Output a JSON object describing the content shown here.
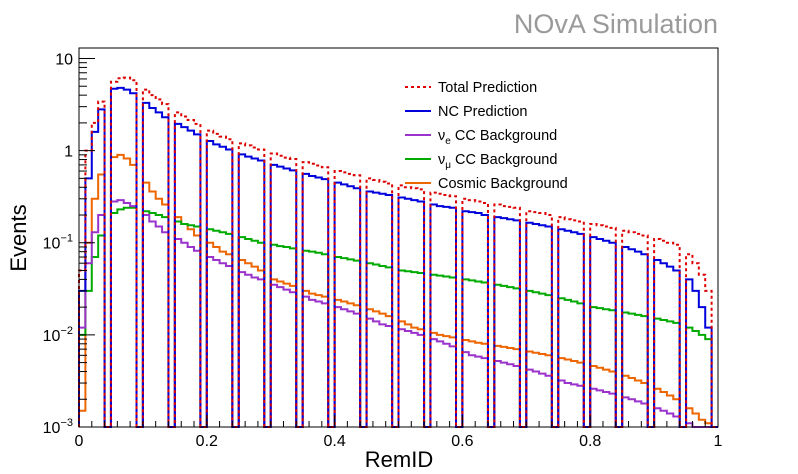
{
  "watermark": "NOvA Simulation",
  "chart_data": {
    "type": "line",
    "style": "step-histogram",
    "xlabel": "RemID",
    "ylabel": "Events",
    "xlim": [
      0,
      1
    ],
    "ylim": [
      0.001,
      13
    ],
    "yscale": "log",
    "grid": false,
    "legend_position": "top-right",
    "x_ticks": [
      "0",
      "0.2",
      "0.4",
      "0.6",
      "0.8",
      "1"
    ],
    "y_ticks": [
      {
        "base": "10",
        "exp": "−3",
        "value": 0.001
      },
      {
        "base": "10",
        "exp": "−2",
        "value": 0.01
      },
      {
        "base": "10",
        "exp": "−1",
        "value": 0.1
      },
      {
        "base": "1",
        "exp": "",
        "value": 1
      },
      {
        "base": "10",
        "exp": "",
        "value": 10
      }
    ],
    "bin_width": 0.01,
    "zero_bins": [
      4,
      9,
      14,
      19,
      24,
      29,
      34,
      39,
      44,
      49,
      54,
      59,
      64,
      69,
      74,
      79,
      84,
      89,
      94,
      99
    ],
    "series": [
      {
        "name": "Total Prediction",
        "color": "#dd0000",
        "dashed": true,
        "values": [
          0.05,
          1.0,
          2.0,
          3.4,
          4.7,
          5.6,
          6.1,
          6.2,
          5.8,
          5.2,
          4.6,
          4.0,
          3.6,
          3.2,
          2.9,
          2.6,
          2.35,
          2.15,
          1.95,
          1.8,
          1.65,
          1.52,
          1.42,
          1.33,
          1.26,
          1.2,
          1.14,
          1.08,
          1.03,
          0.98,
          0.93,
          0.88,
          0.84,
          0.81,
          0.78,
          0.75,
          0.72,
          0.69,
          0.66,
          0.63,
          0.6,
          0.58,
          0.56,
          0.54,
          0.52,
          0.5,
          0.48,
          0.46,
          0.44,
          0.43,
          0.42,
          0.4,
          0.39,
          0.38,
          0.37,
          0.35,
          0.34,
          0.33,
          0.32,
          0.31,
          0.3,
          0.29,
          0.28,
          0.27,
          0.26,
          0.26,
          0.25,
          0.245,
          0.24,
          0.23,
          0.22,
          0.215,
          0.21,
          0.2,
          0.19,
          0.19,
          0.18,
          0.175,
          0.17,
          0.165,
          0.16,
          0.155,
          0.15,
          0.145,
          0.14,
          0.135,
          0.13,
          0.125,
          0.12,
          0.115,
          0.11,
          0.105,
          0.1,
          0.095,
          0.09,
          0.075,
          0.06,
          0.045,
          0.03,
          0.015
        ]
      },
      {
        "name": "NC Prediction",
        "color": "#0000dd",
        "dashed": false,
        "values": [
          0.03,
          0.5,
          1.6,
          2.8,
          3.9,
          4.7,
          4.8,
          4.6,
          4.2,
          3.8,
          3.3,
          2.9,
          2.6,
          2.3,
          2.1,
          1.95,
          1.8,
          1.65,
          1.5,
          1.38,
          1.27,
          1.17,
          1.1,
          1.03,
          0.97,
          0.91,
          0.86,
          0.82,
          0.78,
          0.74,
          0.7,
          0.67,
          0.64,
          0.61,
          0.58,
          0.56,
          0.53,
          0.51,
          0.49,
          0.47,
          0.45,
          0.43,
          0.41,
          0.39,
          0.37,
          0.36,
          0.35,
          0.34,
          0.33,
          0.32,
          0.31,
          0.3,
          0.29,
          0.28,
          0.27,
          0.26,
          0.25,
          0.245,
          0.24,
          0.23,
          0.22,
          0.215,
          0.21,
          0.2,
          0.195,
          0.19,
          0.185,
          0.18,
          0.175,
          0.17,
          0.165,
          0.16,
          0.155,
          0.15,
          0.145,
          0.14,
          0.135,
          0.13,
          0.125,
          0.12,
          0.115,
          0.11,
          0.105,
          0.1,
          0.095,
          0.09,
          0.085,
          0.08,
          0.075,
          0.07,
          0.065,
          0.06,
          0.055,
          0.05,
          0.045,
          0.04,
          0.03,
          0.02,
          0.012,
          0.008
        ]
      },
      {
        "name": "νe CC Background",
        "label_main": "ν",
        "label_sub": "e",
        "label_rest": " CC Background",
        "color": "#9933cc",
        "dashed": false,
        "values": [
          0.012,
          0.06,
          0.13,
          0.2,
          0.26,
          0.28,
          0.29,
          0.27,
          0.25,
          0.22,
          0.2,
          0.17,
          0.15,
          0.13,
          0.12,
          0.11,
          0.1,
          0.09,
          0.082,
          0.075,
          0.07,
          0.065,
          0.06,
          0.056,
          0.052,
          0.048,
          0.045,
          0.042,
          0.04,
          0.037,
          0.035,
          0.033,
          0.031,
          0.029,
          0.027,
          0.026,
          0.024,
          0.023,
          0.022,
          0.021,
          0.02,
          0.019,
          0.018,
          0.017,
          0.016,
          0.015,
          0.014,
          0.013,
          0.0125,
          0.012,
          0.0115,
          0.011,
          0.0105,
          0.01,
          0.0095,
          0.009,
          0.0085,
          0.008,
          0.0075,
          0.007,
          0.0065,
          0.006,
          0.0058,
          0.0056,
          0.0054,
          0.0052,
          0.005,
          0.0048,
          0.0046,
          0.0044,
          0.0042,
          0.004,
          0.0038,
          0.0036,
          0.0034,
          0.0032,
          0.003,
          0.0029,
          0.0028,
          0.0027,
          0.0026,
          0.0025,
          0.0024,
          0.0023,
          0.0022,
          0.0021,
          0.002,
          0.0019,
          0.0018,
          0.0017,
          0.0016,
          0.0015,
          0.0014,
          0.0013,
          0.0012,
          0.0011,
          0.001,
          0.001,
          0.001,
          0.001
        ]
      },
      {
        "name": "νμ CC Background",
        "label_main": "ν",
        "label_sub": "μ",
        "label_rest": " CC Background",
        "color": "#00aa00",
        "dashed": false,
        "values": [
          0.01,
          0.03,
          0.07,
          0.12,
          0.17,
          0.21,
          0.23,
          0.24,
          0.24,
          0.23,
          0.22,
          0.21,
          0.2,
          0.19,
          0.18,
          0.17,
          0.16,
          0.155,
          0.15,
          0.145,
          0.14,
          0.135,
          0.13,
          0.125,
          0.12,
          0.115,
          0.11,
          0.105,
          0.1,
          0.098,
          0.095,
          0.092,
          0.09,
          0.087,
          0.085,
          0.082,
          0.08,
          0.078,
          0.075,
          0.073,
          0.07,
          0.068,
          0.066,
          0.064,
          0.062,
          0.06,
          0.058,
          0.056,
          0.054,
          0.052,
          0.05,
          0.049,
          0.048,
          0.047,
          0.046,
          0.045,
          0.044,
          0.043,
          0.042,
          0.041,
          0.04,
          0.039,
          0.038,
          0.037,
          0.036,
          0.035,
          0.034,
          0.033,
          0.032,
          0.031,
          0.03,
          0.029,
          0.028,
          0.027,
          0.026,
          0.025,
          0.024,
          0.023,
          0.022,
          0.021,
          0.02,
          0.0195,
          0.019,
          0.0185,
          0.018,
          0.0175,
          0.017,
          0.0165,
          0.016,
          0.0155,
          0.015,
          0.0145,
          0.014,
          0.0135,
          0.013,
          0.012,
          0.011,
          0.01,
          0.009,
          0.008
        ]
      },
      {
        "name": "Cosmic Background",
        "color": "#ee6600",
        "dashed": false,
        "values": [
          0.0015,
          0.1,
          0.3,
          0.55,
          0.72,
          0.85,
          0.9,
          0.82,
          0.7,
          0.58,
          0.45,
          0.36,
          0.3,
          0.26,
          0.22,
          0.19,
          0.16,
          0.14,
          0.12,
          0.11,
          0.1,
          0.09,
          0.08,
          0.075,
          0.07,
          0.065,
          0.06,
          0.055,
          0.05,
          0.045,
          0.04,
          0.038,
          0.036,
          0.034,
          0.032,
          0.03,
          0.028,
          0.027,
          0.026,
          0.025,
          0.024,
          0.023,
          0.022,
          0.021,
          0.02,
          0.019,
          0.018,
          0.017,
          0.016,
          0.015,
          0.014,
          0.013,
          0.012,
          0.0115,
          0.011,
          0.0105,
          0.01,
          0.0097,
          0.0094,
          0.0091,
          0.0088,
          0.0085,
          0.0082,
          0.008,
          0.0078,
          0.0076,
          0.0074,
          0.0072,
          0.007,
          0.0068,
          0.0066,
          0.0064,
          0.0062,
          0.006,
          0.0058,
          0.0056,
          0.0054,
          0.0052,
          0.005,
          0.0048,
          0.0046,
          0.0044,
          0.0042,
          0.004,
          0.0038,
          0.0036,
          0.0034,
          0.0032,
          0.003,
          0.0028,
          0.0026,
          0.0024,
          0.0022,
          0.002,
          0.0018,
          0.0016,
          0.0014,
          0.0012,
          0.0011,
          0.001
        ]
      }
    ]
  }
}
